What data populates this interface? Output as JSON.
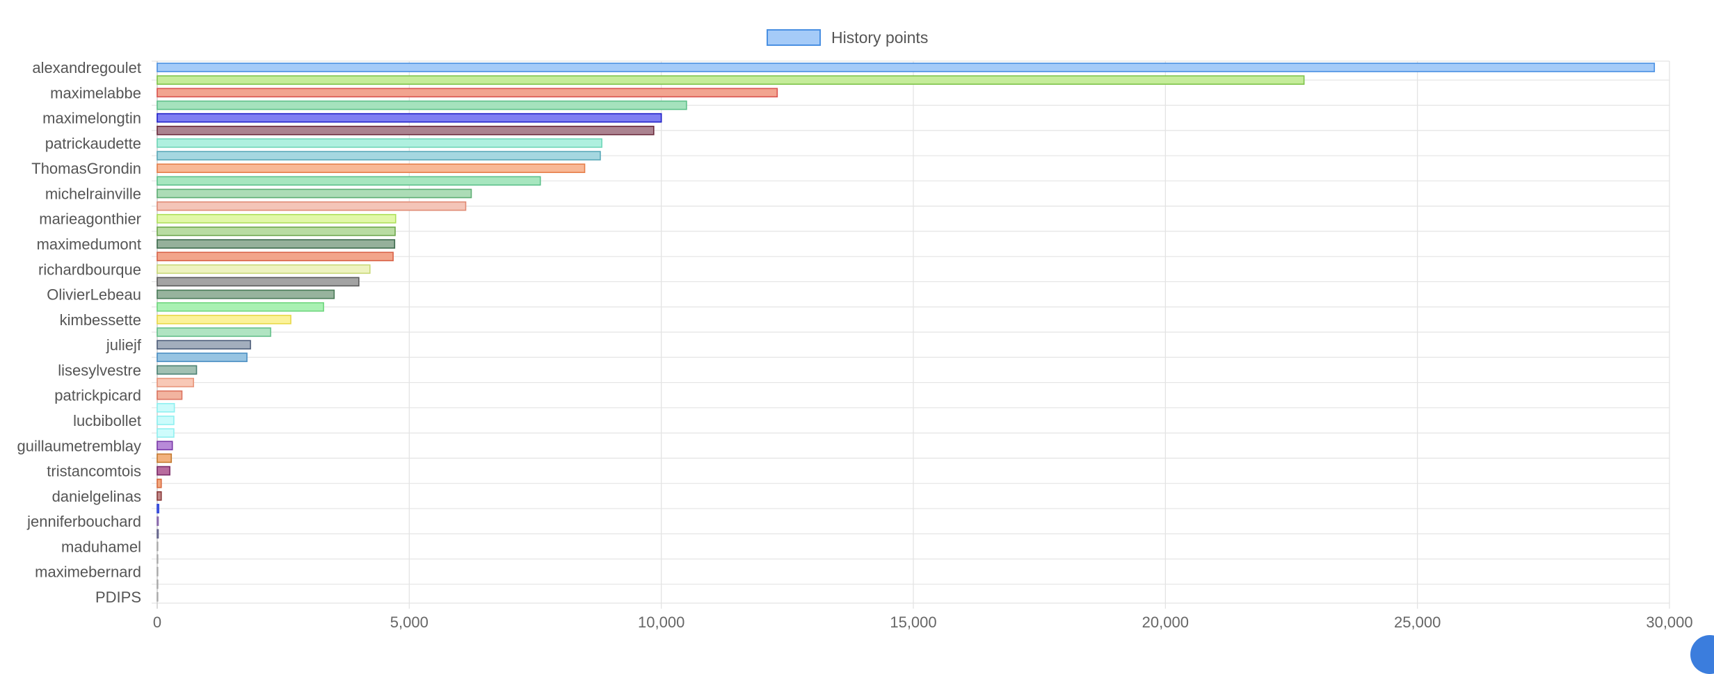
{
  "legend": {
    "label": "History points",
    "color": "#a5cbf8",
    "border": "#4a90e2"
  },
  "chart_data": {
    "type": "bar",
    "orientation": "horizontal",
    "title": "",
    "xlabel": "",
    "ylabel": "",
    "xlim": [
      0,
      30000
    ],
    "x_ticks": [
      "0",
      "5,000",
      "10,000",
      "15,000",
      "20,000",
      "25,000",
      "30,000"
    ],
    "grid": true,
    "legend_position": "top",
    "y_tick_labels": [
      "alexandregoulet",
      "maximelabbe",
      "maximelongtin",
      "patrickaudette",
      "ThomasGrondin",
      "michelrainville",
      "marieagonthier",
      "maximedumont",
      "richardbourque",
      "OlivierLebeau",
      "kimbessette",
      "juliejf",
      "lisesylvestre",
      "patrickpicard",
      "lucbibollet",
      "guillaumetremblay",
      "tristancomtois",
      "danielgelinas",
      "jenniferbouchard",
      "maduhamel",
      "maximebernard",
      "PDIPS"
    ],
    "series": [
      {
        "name": "History points",
        "values": [
          29700,
          22750,
          12300,
          10500,
          10000,
          9850,
          8820,
          8790,
          8480,
          7600,
          6230,
          6120,
          4730,
          4720,
          4710,
          4680,
          4220,
          4000,
          3510,
          3300,
          2650,
          2250,
          1850,
          1780,
          780,
          720,
          490,
          340,
          330,
          330,
          300,
          280,
          250,
          80,
          80,
          30,
          20,
          10,
          0,
          0,
          0,
          0,
          0
        ],
        "colors": [
          "#a5cbf8",
          "#c5ec9a",
          "#f2a490",
          "#a5e2bd",
          "#7f7ff2",
          "#ab8390",
          "#aff0df",
          "#a5d7e0",
          "#f8b896",
          "#a7e6bf",
          "#acdcb6",
          "#f4c5b8",
          "#e1f8a8",
          "#b9dca2",
          "#95b09b",
          "#f2a58b",
          "#eef3c0",
          "#a3a3a3",
          "#97b39d",
          "#a9f1b3",
          "#fbf29a",
          "#b0e4c2",
          "#a3aebd",
          "#97c4e2",
          "#a1c0b2",
          "#f8c8b6",
          "#f2b4a0",
          "#ccfbfb",
          "#ccfbfb",
          "#cefcfc",
          "#b88ad8",
          "#f2b27e",
          "#b86c9e",
          "#f2a87e",
          "#c08888",
          "#7a8cf2",
          "#c6b4d8",
          "#a8a8c0",
          "#d8d8d8",
          "#d8d8d8",
          "#d8d8d8",
          "#d8d8d8",
          "#d8d8d8"
        ],
        "borders": [
          "#4a90e2",
          "#7ec34a",
          "#d9534f",
          "#5fc08a",
          "#2020c8",
          "#6b2a3c",
          "#6fd6b8",
          "#5aa9b8",
          "#e67f4a",
          "#5cc08a",
          "#5fae74",
          "#e08a74",
          "#aee05a",
          "#6fa84e",
          "#3d6b4d",
          "#d9644a",
          "#c8d878",
          "#5a5a5a",
          "#4a7a58",
          "#6fd67e",
          "#e8d848",
          "#66c08a",
          "#4e5e7a",
          "#4a8ec2",
          "#4a8072",
          "#e8947a",
          "#dc7460",
          "#8ef0f0",
          "#8ef0f0",
          "#90f0f0",
          "#7a3aa8",
          "#c47a30",
          "#7a2a68",
          "#d86a40",
          "#8a3a3a",
          "#2a40d8",
          "#8a6aac",
          "#6a6a90",
          "#aaaaaa",
          "#aaaaaa",
          "#aaaaaa",
          "#aaaaaa",
          "#aaaaaa"
        ]
      }
    ]
  }
}
